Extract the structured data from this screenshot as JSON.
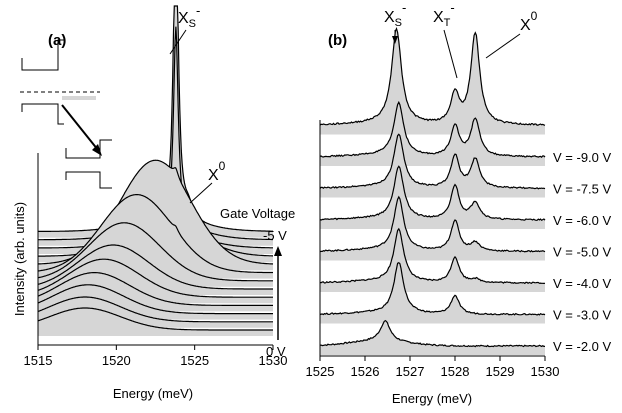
{
  "chart_data": [
    {
      "panel": "(a)",
      "type": "line",
      "xlabel": "Energy (meV)",
      "ylabel": "Intensity (arb. units)",
      "xlim": [
        1515,
        1530
      ],
      "xticks": [
        1515,
        1520,
        1525,
        1530
      ],
      "legend_title": "Gate Voltage",
      "voltage_top": "-5 V",
      "voltage_bottom": "0 V",
      "annotations": [
        "X",
        "S",
        "-",
        "X",
        "0"
      ],
      "n_traces": 13,
      "shaded": true,
      "series": [
        {
          "label": "0 V",
          "xs_amp": 0,
          "x0_amp": 0,
          "bg_center": 1518.0,
          "bg_amp": 0.55
        },
        {
          "label": "",
          "xs_amp": 0,
          "x0_amp": 0,
          "bg_center": 1518.0,
          "bg_amp": 0.62
        },
        {
          "label": "",
          "xs_amp": 0,
          "x0_amp": 0,
          "bg_center": 1518.2,
          "bg_amp": 0.72
        },
        {
          "label": "",
          "xs_amp": 0,
          "x0_amp": 0,
          "bg_center": 1518.6,
          "bg_amp": 0.82
        },
        {
          "label": "",
          "xs_amp": 0,
          "x0_amp": 0,
          "bg_center": 1519.2,
          "bg_amp": 0.95
        },
        {
          "label": "",
          "xs_amp": 0,
          "x0_amp": 0,
          "bg_center": 1519.8,
          "bg_amp": 1.1
        },
        {
          "label": "",
          "xs_amp": 0,
          "x0_amp": 0,
          "bg_center": 1520.5,
          "bg_amp": 1.45
        },
        {
          "label": "",
          "xs_amp": 0.1,
          "x0_amp": 0,
          "bg_center": 1521.3,
          "bg_amp": 1.95
        },
        {
          "label": "",
          "xs_amp": 0.2,
          "x0_amp": 0,
          "bg_center": 1522.5,
          "bg_amp": 2.6
        },
        {
          "label": "",
          "xs_amp": 0.4,
          "x0_amp": 0,
          "bg_center": 1523.0,
          "bg_amp": 0.9
        },
        {
          "label": "",
          "xs_amp": 1.0,
          "x0_amp": 0.2,
          "bg_center": 1523.0,
          "bg_amp": 0.4
        },
        {
          "label": "",
          "xs_amp": 5.0,
          "x0_amp": 0.3,
          "bg_center": 1523.0,
          "bg_amp": 0.3
        },
        {
          "label": "-5 V",
          "xs_amp": 8.0,
          "x0_amp": 0.35,
          "bg_center": 1523.0,
          "bg_amp": 0.25
        }
      ],
      "peaks": {
        "xs_center": 1523.8,
        "x0_center": 1524.6
      }
    },
    {
      "panel": "(b)",
      "type": "line",
      "xlabel": "Energy (meV)",
      "xlim": [
        1525,
        1530
      ],
      "xticks": [
        1525,
        1526,
        1527,
        1528,
        1529,
        1530
      ],
      "annotations": [
        "X",
        "S",
        "-",
        "X",
        "T",
        "-",
        "X",
        "0"
      ],
      "shaded": true,
      "peaks": {
        "xs_center": 1526.75,
        "xt_center": 1528.0,
        "x0_center": 1528.45
      },
      "series": [
        {
          "label": "V = -2.0 V",
          "xs_amp": 0.6,
          "xs_center": 1526.45,
          "xt_amp": 0,
          "x0_amp": 0
        },
        {
          "label": "V = -3.0 V",
          "xs_amp": 1.5,
          "xs_center": 1526.75,
          "xt_amp": 0.55,
          "x0_amp": 0
        },
        {
          "label": "V = -4.0 V",
          "xs_amp": 1.55,
          "xs_center": 1526.75,
          "xt_amp": 0.75,
          "x0_amp": 0.1
        },
        {
          "label": "V = -5.0 V",
          "xs_amp": 1.55,
          "xs_center": 1526.75,
          "xt_amp": 0.9,
          "x0_amp": 0.25
        },
        {
          "label": "V = -6.0 V",
          "xs_amp": 1.55,
          "xs_center": 1526.75,
          "xt_amp": 1.0,
          "x0_amp": 0.5
        },
        {
          "label": "V = -7.5 V",
          "xs_amp": 1.55,
          "xs_center": 1526.75,
          "xt_amp": 0.95,
          "x0_amp": 0.85
        },
        {
          "label": "V = -9.0 V",
          "xs_amp": 1.55,
          "xs_center": 1526.75,
          "xt_amp": 0.9,
          "x0_amp": 1.1
        },
        {
          "label": "",
          "xs_amp": 2.5,
          "xs_center": 1526.7,
          "xt_amp": 0.8,
          "x0_amp": 2.4
        }
      ]
    }
  ]
}
